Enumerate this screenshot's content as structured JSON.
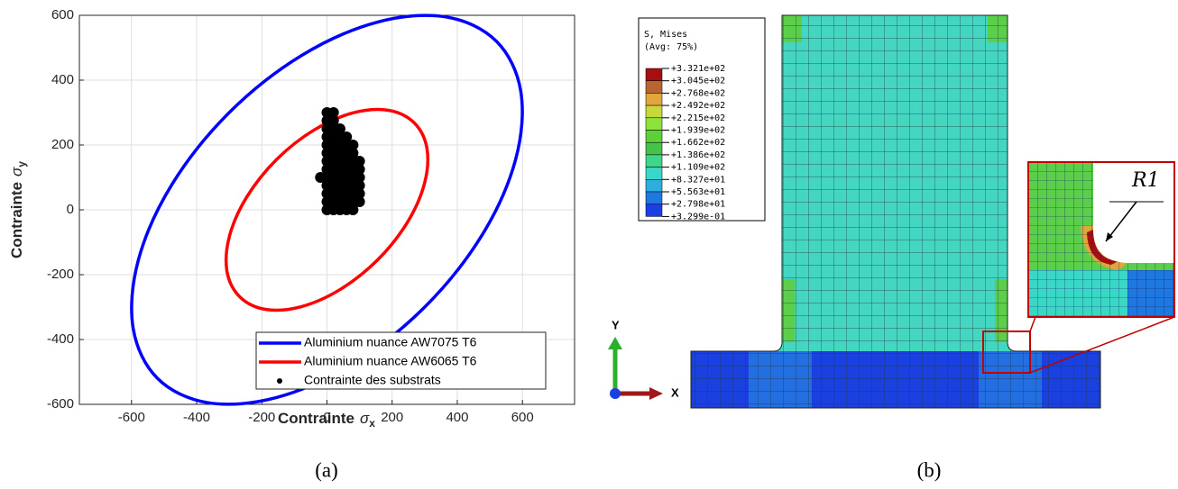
{
  "chart_data": {
    "type": "line",
    "xlabel": "Contrainte",
    "xlabel_symbol": "σ",
    "xlabel_sub": "x",
    "ylabel": "Contrainte",
    "ylabel_symbol": "σ",
    "ylabel_sub": "y",
    "xlim": [
      -760,
      760
    ],
    "ylim": [
      -600,
      600
    ],
    "xticks": [
      -600,
      -400,
      -200,
      0,
      200,
      400,
      600
    ],
    "yticks": [
      -600,
      -400,
      -200,
      0,
      200,
      400,
      600
    ],
    "grid": true,
    "legend": "lower right",
    "series": [
      {
        "name": "Aluminium nuance AW7075 T6",
        "color": "#0000ff",
        "type": "line",
        "x": [
          520,
          365,
          155,
          -78,
          -300,
          -476,
          -579,
          -595,
          -520,
          -365,
          -155,
          78,
          300,
          476,
          579,
          595,
          520
        ],
        "values": [
          520,
          595,
          579,
          476,
          300,
          78,
          -155,
          -365,
          -520,
          -595,
          -579,
          -476,
          -300,
          -78,
          155,
          365,
          520
        ]
      },
      {
        "name": "Aluminium nuance AW6065 T6",
        "color": "#ff0000",
        "type": "line",
        "x": [
          268,
          189,
          80,
          -40,
          -155,
          -246,
          -299,
          -307,
          -268,
          -189,
          -80,
          40,
          155,
          246,
          299,
          307,
          268
        ],
        "values": [
          268,
          307,
          299,
          246,
          155,
          40,
          -80,
          -189,
          -268,
          -307,
          -299,
          -246,
          -155,
          -40,
          80,
          189,
          268
        ]
      },
      {
        "name": "Contrainte des substrats",
        "color": "#000000",
        "type": "scatter",
        "x": [
          0,
          20,
          0,
          20,
          0,
          20,
          40,
          0,
          20,
          40,
          60,
          0,
          20,
          40,
          60,
          80,
          0,
          20,
          40,
          60,
          80,
          0,
          20,
          40,
          60,
          80,
          100,
          0,
          20,
          40,
          60,
          80,
          100,
          -20,
          0,
          20,
          40,
          60,
          80,
          100,
          0,
          20,
          40,
          60,
          80,
          100,
          0,
          20,
          40,
          60,
          80,
          100,
          0,
          20,
          40,
          60,
          80,
          100,
          0,
          20,
          40,
          60,
          80
        ],
        "values": [
          300,
          300,
          275,
          275,
          250,
          250,
          250,
          225,
          225,
          225,
          225,
          200,
          200,
          200,
          200,
          200,
          175,
          175,
          175,
          175,
          175,
          150,
          150,
          150,
          150,
          150,
          150,
          125,
          125,
          125,
          125,
          125,
          125,
          100,
          100,
          100,
          100,
          100,
          100,
          100,
          75,
          75,
          75,
          75,
          75,
          75,
          50,
          50,
          50,
          50,
          50,
          50,
          25,
          25,
          25,
          25,
          25,
          25,
          0,
          0,
          0,
          0,
          0
        ]
      }
    ]
  },
  "figure_b": {
    "legend_title": "S, Mises",
    "legend_subtitle": "(Avg: 75%)",
    "levels": [
      "+3.321e+02",
      "+3.045e+02",
      "+2.768e+02",
      "+2.492e+02",
      "+2.215e+02",
      "+1.939e+02",
      "+1.662e+02",
      "+1.386e+02",
      "+1.109e+02",
      "+8.327e+01",
      "+5.563e+01",
      "+2.798e+01",
      "+3.299e-01"
    ],
    "colors": [
      "#a50f0f",
      "#b8662e",
      "#e0a53c",
      "#c8d83a",
      "#8ee23a",
      "#5cd13a",
      "#46c24a",
      "#3fd68c",
      "#3ad6c6",
      "#2eaee0",
      "#1e78e0",
      "#1b3ee6"
    ],
    "triad_y": "Y",
    "triad_x": "X",
    "inset_label": "R1"
  },
  "captions": {
    "a": "(a)",
    "b": "(b)"
  }
}
